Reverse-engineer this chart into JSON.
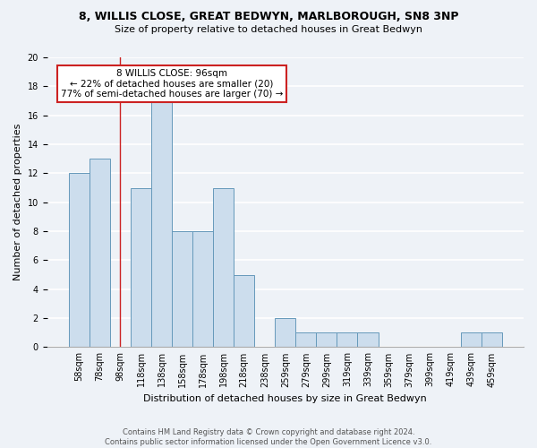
{
  "title1": "8, WILLIS CLOSE, GREAT BEDWYN, MARLBOROUGH, SN8 3NP",
  "title2": "Size of property relative to detached houses in Great Bedwyn",
  "xlabel": "Distribution of detached houses by size in Great Bedwyn",
  "ylabel": "Number of detached properties",
  "bar_labels": [
    "58sqm",
    "78sqm",
    "98sqm",
    "118sqm",
    "138sqm",
    "158sqm",
    "178sqm",
    "198sqm",
    "218sqm",
    "238sqm",
    "259sqm",
    "279sqm",
    "299sqm",
    "319sqm",
    "339sqm",
    "359sqm",
    "379sqm",
    "399sqm",
    "419sqm",
    "439sqm",
    "459sqm"
  ],
  "bar_values": [
    12,
    13,
    0,
    11,
    17,
    8,
    8,
    11,
    5,
    0,
    2,
    1,
    1,
    1,
    1,
    0,
    0,
    0,
    0,
    1,
    1
  ],
  "bar_color": "#ccdded",
  "bar_edge_color": "#6699bb",
  "vline_x_idx": 2,
  "vline_color": "#cc2222",
  "ylim": [
    0,
    20
  ],
  "yticks": [
    0,
    2,
    4,
    6,
    8,
    10,
    12,
    14,
    16,
    18,
    20
  ],
  "annotation_line1": "8 WILLIS CLOSE: 96sqm",
  "annotation_line2": "← 22% of detached houses are smaller (20)",
  "annotation_line3": "77% of semi-detached houses are larger (70) →",
  "annotation_box_color": "white",
  "annotation_box_edge_color": "#cc2222",
  "footer1": "Contains HM Land Registry data © Crown copyright and database right 2024.",
  "footer2": "Contains public sector information licensed under the Open Government Licence v3.0.",
  "background_color": "#eef2f7",
  "grid_color": "white",
  "title_fontsize": 9,
  "subtitle_fontsize": 8,
  "axis_label_fontsize": 8,
  "tick_fontsize": 7,
  "annotation_fontsize": 7.5,
  "footer_fontsize": 6
}
